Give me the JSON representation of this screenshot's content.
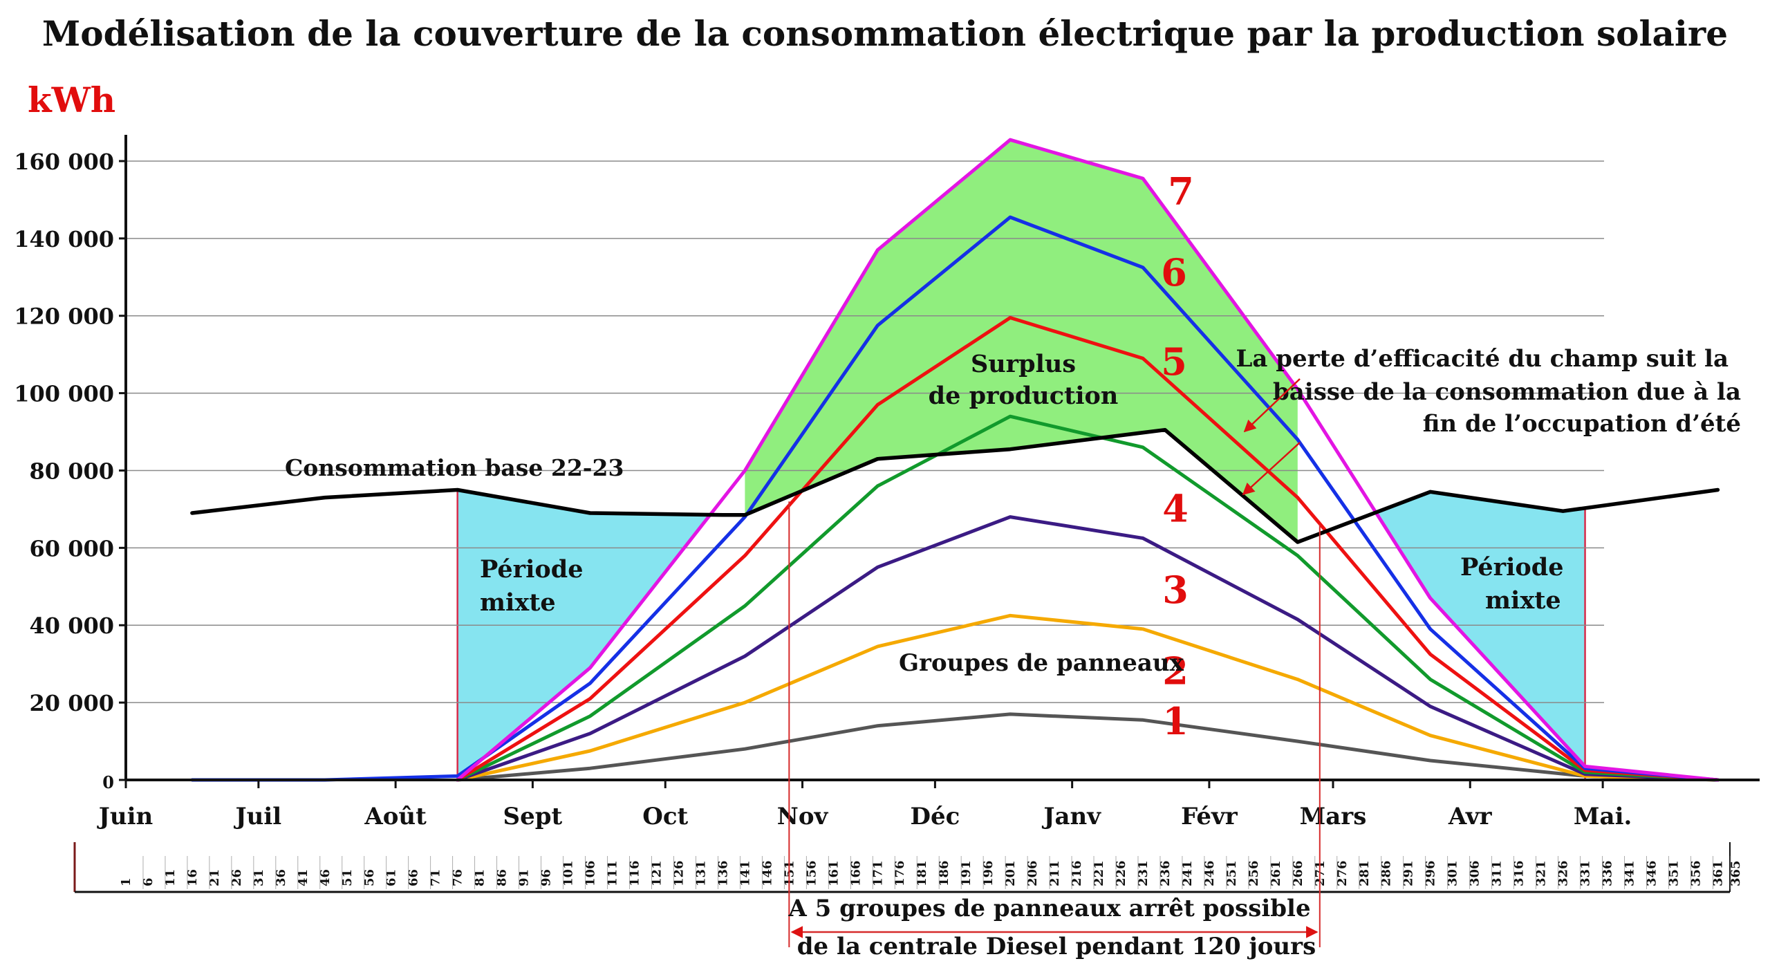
{
  "chart_data": {
    "type": "line",
    "title": "Modélisation de la couverture de la consommation électrique par la production solaire",
    "ylabel": "kWh",
    "ylim": [
      0,
      165000
    ],
    "xlim": [
      1,
      365
    ],
    "y_ticks": [
      {
        "value": 0,
        "label": "0"
      },
      {
        "value": 20000,
        "label": "20 000"
      },
      {
        "value": 40000,
        "label": "40 000"
      },
      {
        "value": 60000,
        "label": "60 000"
      },
      {
        "value": 80000,
        "label": "80 000"
      },
      {
        "value": 100000,
        "label": "100 000"
      },
      {
        "value": 120000,
        "label": "120 000"
      },
      {
        "value": 140000,
        "label": "140 000"
      },
      {
        "value": 160000,
        "label": "160 000"
      }
    ],
    "grid": true,
    "months": [
      {
        "label": "Juin",
        "day": 1
      },
      {
        "label": "Juil",
        "day": 31
      },
      {
        "label": "Août",
        "day": 62
      },
      {
        "label": "Sept",
        "day": 93
      },
      {
        "label": "Oct",
        "day": 123
      },
      {
        "label": "Nov",
        "day": 154
      },
      {
        "label": "Déc",
        "day": 184
      },
      {
        "label": "Janv",
        "day": 215
      },
      {
        "label": "Févr",
        "day": 246
      },
      {
        "label": "Mars",
        "day": 274
      },
      {
        "label": "Avr",
        "day": 305
      },
      {
        "label": "Mai.",
        "day": 335
      }
    ],
    "day_ticks": [
      "1",
      "6",
      "11",
      "16",
      "21",
      "26",
      "31",
      "36",
      "41",
      "46",
      "51",
      "56",
      "61",
      "66",
      "71",
      "76",
      "81",
      "86",
      "91",
      "96",
      "101",
      "106",
      "111",
      "116",
      "121",
      "126",
      "131",
      "136",
      "141",
      "146",
      "151",
      "156",
      "161",
      "166",
      "171",
      "176",
      "181",
      "186",
      "191",
      "196",
      "201",
      "206",
      "211",
      "216",
      "221",
      "226",
      "231",
      "236",
      "241",
      "246",
      "251",
      "256",
      "261",
      "266",
      "271",
      "276",
      "281",
      "286",
      "291",
      "296",
      "301",
      "306",
      "311",
      "316",
      "321",
      "326",
      "331",
      "336",
      "341",
      "346",
      "351",
      "356",
      "361",
      "365"
    ],
    "consumption": {
      "label": "Consommation base 22-23",
      "color": "#000000",
      "x": [
        16,
        46,
        76,
        106,
        136,
        141,
        171,
        201,
        236,
        266,
        296,
        326,
        361
      ],
      "y": [
        69000,
        73000,
        75000,
        69000,
        68500,
        68500,
        83000,
        85500,
        90500,
        61500,
        74500,
        69500,
        75000
      ]
    },
    "series": [
      {
        "name": "1",
        "color": "#555555",
        "x": [
          76,
          106,
          141,
          171,
          201,
          231,
          266,
          296,
          331,
          361
        ],
        "y": [
          0,
          3000,
          8000,
          14000,
          17000,
          15500,
          10000,
          5000,
          1000,
          0
        ]
      },
      {
        "name": "2",
        "color": "#f5a900",
        "x": [
          76,
          106,
          141,
          171,
          201,
          231,
          266,
          296,
          331,
          361
        ],
        "y": [
          0,
          7500,
          20000,
          34500,
          42500,
          39000,
          26000,
          11500,
          1000,
          0
        ]
      },
      {
        "name": "3",
        "color": "#3b1b84",
        "x": [
          76,
          106,
          141,
          171,
          201,
          231,
          266,
          296,
          331,
          361
        ],
        "y": [
          0,
          12000,
          32000,
          55000,
          68000,
          62500,
          41500,
          19000,
          1500,
          0
        ]
      },
      {
        "name": "4",
        "color": "#119a2c",
        "x": [
          76,
          106,
          141,
          171,
          201,
          231,
          266,
          296,
          331,
          361
        ],
        "y": [
          0,
          16500,
          45000,
          76000,
          94000,
          86000,
          58000,
          26000,
          2000,
          0
        ]
      },
      {
        "name": "5",
        "color": "#ee1111",
        "x": [
          76,
          106,
          141,
          171,
          201,
          231,
          266,
          296,
          331,
          361
        ],
        "y": [
          0,
          21000,
          58000,
          97000,
          119500,
          109000,
          73000,
          32500,
          2500,
          0
        ]
      },
      {
        "name": "6",
        "color": "#1530e6",
        "x": [
          16,
          46,
          76,
          106,
          141,
          171,
          201,
          231,
          266,
          296,
          331,
          361
        ],
        "y": [
          0,
          0,
          1000,
          25000,
          68000,
          117500,
          145500,
          132500,
          88000,
          39000,
          3000,
          0
        ]
      },
      {
        "name": "7",
        "color": "#e315e3",
        "x": [
          76,
          106,
          141,
          171,
          201,
          231,
          266,
          296,
          331,
          361
        ],
        "y": [
          0,
          29000,
          80000,
          137000,
          165500,
          155500,
          101000,
          47000,
          3500,
          0
        ]
      }
    ],
    "mixed_periods": [
      {
        "label_line1": "Période",
        "label_line2": "mixte",
        "from": 76,
        "to": 141,
        "color": "#86e4f0"
      },
      {
        "label_line1": "Période",
        "label_line2": "mixte",
        "from": 266,
        "to": 331,
        "color": "#86e4f0"
      }
    ],
    "surplus": {
      "label_line1": "Surplus",
      "label_line2": "de production",
      "color": "#90ee7e"
    },
    "annotations": {
      "groupes": "Groupes de panneaux",
      "efficiency_line1": "La perte d’efficacité du champ suit la",
      "efficiency_line2": "baisse de la consommation due à la",
      "efficiency_line3": "fin de l’occupation d’été",
      "diesel_line1": "A 5 groupes de panneaux arrêt possible",
      "diesel_line2": "de la centrale Diesel pendant 120 jours",
      "diesel_from": 151,
      "diesel_to": 271
    }
  }
}
